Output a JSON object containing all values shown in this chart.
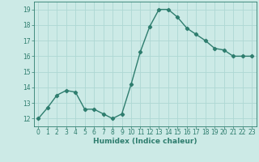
{
  "x": [
    0,
    1,
    2,
    3,
    4,
    5,
    6,
    7,
    8,
    9,
    10,
    11,
    12,
    13,
    14,
    15,
    16,
    17,
    18,
    19,
    20,
    21,
    22,
    23
  ],
  "y": [
    12.0,
    12.7,
    13.5,
    13.8,
    13.7,
    12.6,
    12.6,
    12.3,
    12.0,
    12.3,
    14.2,
    16.3,
    17.9,
    19.0,
    19.0,
    18.5,
    17.8,
    17.4,
    17.0,
    16.5,
    16.4,
    16.0,
    16.0,
    16.0
  ],
  "xlabel": "Humidex (Indice chaleur)",
  "xlim": [
    -0.5,
    23.5
  ],
  "ylim": [
    11.5,
    19.5
  ],
  "yticks": [
    12,
    13,
    14,
    15,
    16,
    17,
    18,
    19
  ],
  "xticks": [
    0,
    1,
    2,
    3,
    4,
    5,
    6,
    7,
    8,
    9,
    10,
    11,
    12,
    13,
    14,
    15,
    16,
    17,
    18,
    19,
    20,
    21,
    22,
    23
  ],
  "line_color": "#2e7d6e",
  "bg_color": "#cceae6",
  "grid_color": "#aed8d3",
  "marker": "D",
  "marker_size": 2.2,
  "line_width": 1.0
}
